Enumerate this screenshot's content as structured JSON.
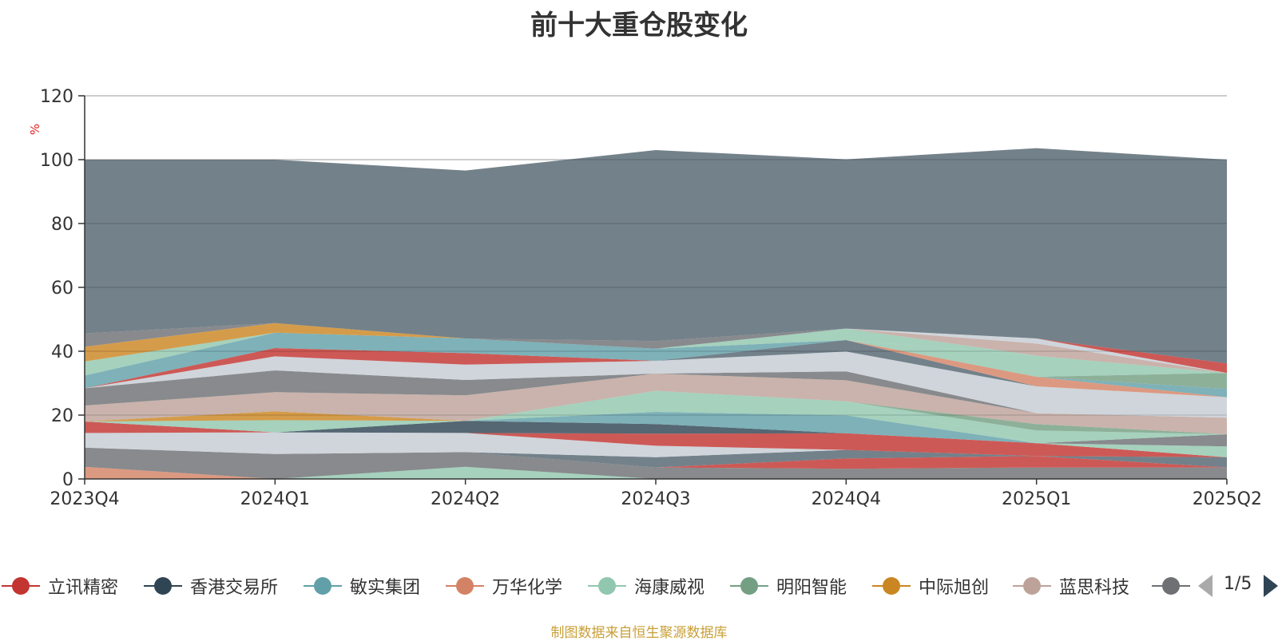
{
  "title": "前十大重仓股变化",
  "footer": "制图数据来自恒生聚源数据库",
  "pager": {
    "page": "1/5"
  },
  "legend": [
    {
      "name": "立讯精密",
      "color": "#c23531"
    },
    {
      "name": "香港交易所",
      "color": "#2f4554"
    },
    {
      "name": "敏实集团",
      "color": "#61a0a8"
    },
    {
      "name": "万华化学",
      "color": "#d48265"
    },
    {
      "name": "海康威视",
      "color": "#91c7ae"
    },
    {
      "name": "明阳智能",
      "color": "#749f83"
    },
    {
      "name": "中际旭创",
      "color": "#ca8622"
    },
    {
      "name": "蓝思科技",
      "color": "#bda29a"
    },
    {
      "name": "",
      "color": "#6e7074"
    }
  ],
  "chart_data": {
    "type": "area",
    "stacked": true,
    "ylabel": "%",
    "ylim": [
      0,
      120
    ],
    "yticks": [
      0,
      20,
      40,
      60,
      80,
      100,
      120
    ],
    "categories": [
      "2023Q4",
      "2024Q1",
      "2024Q2",
      "2024Q3",
      "2024Q4",
      "2025Q1",
      "2025Q2"
    ],
    "grid": true,
    "series": [
      {
        "values": [
          3.8,
          0,
          0,
          0,
          0,
          0,
          0
        ],
        "color": "#d48265"
      },
      {
        "values": [
          0,
          0,
          3.8,
          0,
          0,
          0,
          0
        ],
        "color": "#91c7ae"
      },
      {
        "values": [
          6.0,
          7.8,
          4.6,
          3.6,
          3.2,
          3.6,
          3.6
        ],
        "color": "#6e7074"
      },
      {
        "values": [
          0,
          0,
          0,
          0,
          3.2,
          3.6,
          0
        ],
        "color": "#c23531"
      },
      {
        "values": [
          0,
          0,
          0,
          3.2,
          2.7,
          0,
          3.2
        ],
        "color": "#546570"
      },
      {
        "values": [
          4.6,
          6.8,
          6.0,
          3.6,
          0,
          0,
          0
        ],
        "color": "#c4ccd3"
      },
      {
        "values": [
          3.6,
          0,
          0,
          3.8,
          5.2,
          4.0,
          0
        ],
        "color": "#c23531"
      },
      {
        "values": [
          0,
          0,
          3.8,
          3.0,
          0,
          0,
          0
        ],
        "color": "#2f4554"
      },
      {
        "values": [
          0,
          3.8,
          0,
          0,
          0,
          0,
          3.4
        ],
        "color": "#91c7ae"
      },
      {
        "values": [
          0,
          0,
          0,
          0,
          0,
          0,
          3.8
        ],
        "color": "#6e7074"
      },
      {
        "values": [
          0,
          0,
          0,
          3.8,
          5.6,
          0,
          0
        ],
        "color": "#61a0a8"
      },
      {
        "values": [
          0,
          2.8,
          0,
          0,
          0,
          0,
          0
        ],
        "color": "#ca8622"
      },
      {
        "values": [
          0,
          0,
          0,
          6.6,
          4.4,
          0,
          0
        ],
        "color": "#91c7ae"
      },
      {
        "values": [
          0,
          0,
          0,
          0,
          0,
          4.0,
          0
        ],
        "color": "#91c7ae"
      },
      {
        "values": [
          0,
          0,
          0,
          0,
          0,
          2.0,
          0
        ],
        "color": "#749f83"
      },
      {
        "values": [
          5.0,
          6.0,
          8.0,
          5.4,
          6.6,
          3.4,
          5.2
        ],
        "color": "#bda29a"
      },
      {
        "values": [
          0,
          0,
          0,
          0,
          2.8,
          0,
          0
        ],
        "color": "#6e7074"
      },
      {
        "values": [
          5.4,
          6.8,
          4.8,
          0,
          0,
          0,
          0
        ],
        "color": "#6e7074"
      },
      {
        "values": [
          0,
          4.4,
          4.8,
          4.0,
          6.2,
          8.4,
          6.4
        ],
        "color": "#c4ccd3"
      },
      {
        "values": [
          0,
          0,
          0,
          0,
          3.6,
          0,
          0
        ],
        "color": "#546570"
      },
      {
        "values": [
          0,
          0,
          0,
          0,
          0,
          3.0,
          0
        ],
        "color": "#d48265"
      },
      {
        "values": [
          0,
          0,
          0,
          0,
          0,
          0,
          2.6
        ],
        "color": "#61a0a8"
      },
      {
        "values": [
          0,
          2.6,
          3.6,
          0,
          0,
          0,
          0
        ],
        "color": "#c23531"
      },
      {
        "values": [
          4.0,
          4.8,
          4.6,
          3.8,
          0,
          0,
          0
        ],
        "color": "#61a0a8"
      },
      {
        "values": [
          0,
          0,
          0,
          0,
          0,
          0,
          5.0
        ],
        "color": "#749f83"
      },
      {
        "values": [
          0,
          0,
          0,
          0,
          0,
          6.6,
          0
        ],
        "color": "#91c7ae"
      },
      {
        "values": [
          4.4,
          0,
          0,
          0,
          0,
          0,
          0
        ],
        "color": "#91c7ae"
      },
      {
        "values": [
          0,
          0,
          0,
          0,
          3.6,
          0,
          0
        ],
        "color": "#91c7ae"
      },
      {
        "values": [
          0,
          0,
          0,
          0,
          0,
          3.8,
          0
        ],
        "color": "#bda29a"
      },
      {
        "values": [
          4.6,
          3.0,
          0,
          0,
          0,
          0,
          0
        ],
        "color": "#ca8622"
      },
      {
        "values": [
          0,
          0,
          0,
          0,
          0,
          1.6,
          0
        ],
        "color": "#c4ccd3"
      },
      {
        "values": [
          0,
          0,
          0,
          0,
          0,
          0,
          3.0
        ],
        "color": "#c23531"
      },
      {
        "values": [
          4.2,
          0,
          0,
          2.4,
          0,
          0,
          0
        ],
        "color": "#6e7074"
      },
      {
        "values": [
          54.4,
          51.2,
          52.6,
          59.8,
          53.0,
          59.6,
          63.8
        ],
        "color": "#546570"
      }
    ]
  }
}
